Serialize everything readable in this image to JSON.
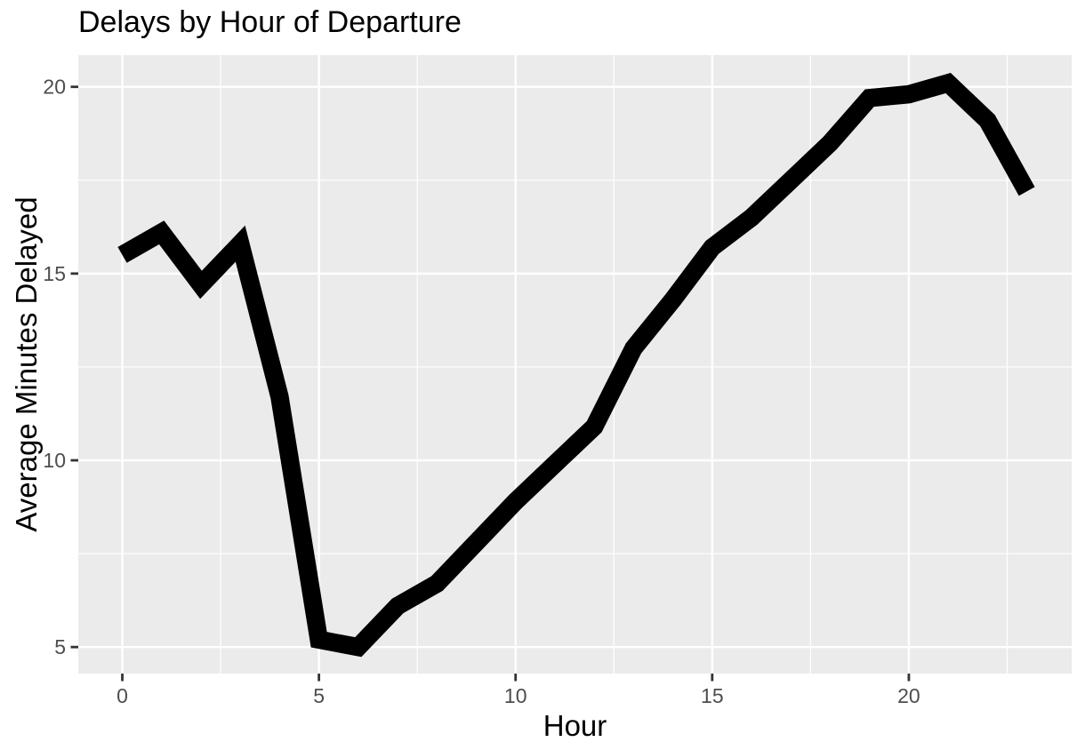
{
  "chart_data": {
    "type": "line",
    "title": "Delays by Hour of Departure",
    "xlabel": "Hour",
    "ylabel": "Average Minutes Delayed",
    "x": [
      0,
      1,
      2,
      3,
      4,
      5,
      6,
      7,
      8,
      9,
      10,
      11,
      12,
      13,
      14,
      15,
      16,
      17,
      18,
      19,
      20,
      21,
      22,
      23
    ],
    "series": [
      {
        "name": "average-minutes-delayed",
        "values": [
          15.5,
          16.1,
          14.7,
          15.8,
          11.7,
          5.2,
          5.0,
          6.1,
          6.7,
          7.8,
          8.9,
          9.9,
          10.9,
          13.0,
          14.3,
          15.7,
          16.5,
          17.5,
          18.5,
          19.7,
          19.8,
          20.1,
          19.1,
          17.2
        ]
      }
    ],
    "x_breaks": [
      0,
      5,
      10,
      15,
      20
    ],
    "x_minor_breaks": [
      2.5,
      7.5,
      12.5,
      17.5,
      22.5
    ],
    "y_breaks": [
      5,
      10,
      15,
      20
    ],
    "y_minor_breaks": [
      7.5,
      12.5,
      17.5
    ],
    "xlim": [
      -1.12,
      24.14
    ],
    "ylim": [
      4.29,
      20.85
    ],
    "grid": true,
    "legend": "none",
    "colors": {
      "panel_bg": "#EBEBEB",
      "grid": "#FFFFFF",
      "line": "#000000",
      "tick_text": "#4D4D4D",
      "tick_mark": "#333333",
      "title_text": "#000000"
    }
  }
}
